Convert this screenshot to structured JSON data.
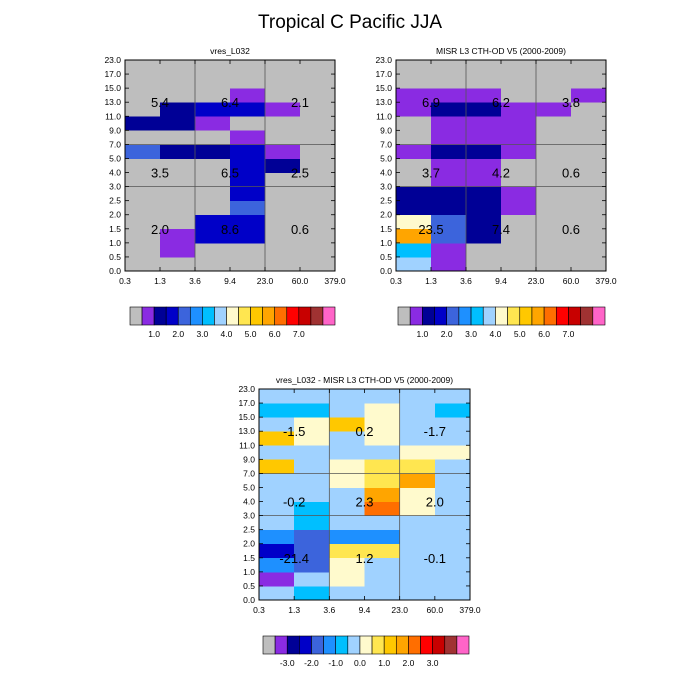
{
  "title": "Tropical C Pacific JJA",
  "colors": {
    "absolute_palette": [
      "#bebebe",
      "#8a2be2",
      "#000096",
      "#0000c8",
      "#3c64dc",
      "#1e90ff",
      "#00bfff",
      "#a0d2ff",
      "#fffacd",
      "#ffe650",
      "#ffc800",
      "#ffa500",
      "#ff6e00",
      "#ff0000",
      "#c80000",
      "#a03232",
      "#ff64c8"
    ],
    "difference_palette": [
      "#bebebe",
      "#8a2be2",
      "#000096",
      "#0000c8",
      "#3c64dc",
      "#1e90ff",
      "#00bfff",
      "#a0d2ff",
      "#fffacd",
      "#ffe650",
      "#ffc800",
      "#ffa500",
      "#ff6e00",
      "#ff0000",
      "#c80000",
      "#a03232",
      "#ff64c8"
    ]
  },
  "chart_data": [
    {
      "type": "heatmap",
      "title": "vres_L032",
      "x_ticks": [
        "0.3",
        "1.3",
        "3.6",
        "9.4",
        "23.0",
        "60.0",
        "379.0"
      ],
      "y_ticks": [
        "0.0",
        "0.5",
        "1.0",
        "1.5",
        "2.0",
        "2.5",
        "3.0",
        "4.0",
        "5.0",
        "7.0",
        "9.0",
        "11.0",
        "13.0",
        "15.0",
        "17.0",
        "23.0"
      ],
      "cells": [
        [
          0,
          0,
          0,
          0,
          0,
          0
        ],
        [
          0,
          1,
          0,
          0,
          0,
          0
        ],
        [
          0,
          1,
          3,
          3,
          0,
          0
        ],
        [
          0,
          0,
          3,
          3,
          0,
          0
        ],
        [
          0,
          0,
          0,
          4,
          0,
          0
        ],
        [
          0,
          0,
          0,
          3,
          0,
          0
        ],
        [
          0,
          0,
          0,
          3,
          0,
          0
        ],
        [
          0,
          0,
          0,
          3,
          2,
          0
        ],
        [
          4,
          2,
          2,
          3,
          1,
          0
        ],
        [
          0,
          0,
          0,
          1,
          0,
          0
        ],
        [
          2,
          2,
          1,
          0,
          0,
          0
        ],
        [
          0,
          2,
          3,
          3,
          1,
          0
        ],
        [
          0,
          0,
          0,
          1,
          0,
          0
        ],
        [
          0,
          0,
          0,
          0,
          0,
          0
        ],
        [
          0,
          0,
          0,
          0,
          0,
          0
        ]
      ],
      "annotations": [
        {
          "text": "5.4",
          "x_bin": 1,
          "y_bin": 12
        },
        {
          "text": "6.4",
          "x_bin": 3,
          "y_bin": 12
        },
        {
          "text": "2.1",
          "x_bin": 5,
          "y_bin": 12
        },
        {
          "text": "3.5",
          "x_bin": 1,
          "y_bin": 7
        },
        {
          "text": "6.5",
          "x_bin": 3,
          "y_bin": 7
        },
        {
          "text": "2.5",
          "x_bin": 5,
          "y_bin": 7
        },
        {
          "text": "2.0",
          "x_bin": 1,
          "y_bin": 3
        },
        {
          "text": "8.6",
          "x_bin": 3,
          "y_bin": 3
        },
        {
          "text": "0.6",
          "x_bin": 5,
          "y_bin": 3
        }
      ],
      "colorbar_labels": [
        "1.0",
        "2.0",
        "3.0",
        "4.0",
        "5.0",
        "6.0",
        "7.0"
      ]
    },
    {
      "type": "heatmap",
      "title": "MISR L3 CTH-OD V5 (2000-2009)",
      "x_ticks": [
        "0.3",
        "1.3",
        "3.6",
        "9.4",
        "23.0",
        "60.0",
        "379.0"
      ],
      "y_ticks": [
        "0.0",
        "0.5",
        "1.0",
        "1.5",
        "2.0",
        "2.5",
        "3.0",
        "4.0",
        "5.0",
        "7.0",
        "9.0",
        "11.0",
        "13.0",
        "15.0",
        "17.0",
        "23.0"
      ],
      "cells": [
        [
          7,
          1,
          0,
          0,
          0,
          0
        ],
        [
          6,
          1,
          0,
          0,
          0,
          0
        ],
        [
          11,
          4,
          2,
          0,
          0,
          0
        ],
        [
          8,
          4,
          2,
          0,
          0,
          0
        ],
        [
          2,
          2,
          2,
          1,
          0,
          0
        ],
        [
          2,
          2,
          2,
          1,
          0,
          0
        ],
        [
          0,
          1,
          1,
          0,
          0,
          0
        ],
        [
          0,
          1,
          1,
          0,
          0,
          0
        ],
        [
          1,
          2,
          2,
          1,
          0,
          0
        ],
        [
          0,
          1,
          1,
          1,
          0,
          0
        ],
        [
          0,
          1,
          1,
          1,
          0,
          0
        ],
        [
          1,
          2,
          2,
          1,
          1,
          0
        ],
        [
          1,
          1,
          1,
          0,
          0,
          1
        ],
        [
          0,
          0,
          0,
          0,
          0,
          0
        ],
        [
          0,
          0,
          0,
          0,
          0,
          0
        ]
      ],
      "annotations": [
        {
          "text": "6.9",
          "x_bin": 1,
          "y_bin": 12
        },
        {
          "text": "6.2",
          "x_bin": 3,
          "y_bin": 12
        },
        {
          "text": "3.8",
          "x_bin": 5,
          "y_bin": 12
        },
        {
          "text": "3.7",
          "x_bin": 1,
          "y_bin": 7
        },
        {
          "text": "4.2",
          "x_bin": 3,
          "y_bin": 7
        },
        {
          "text": "0.6",
          "x_bin": 5,
          "y_bin": 7
        },
        {
          "text": "23.5",
          "x_bin": 1,
          "y_bin": 3
        },
        {
          "text": "7.4",
          "x_bin": 3,
          "y_bin": 3
        },
        {
          "text": "0.6",
          "x_bin": 5,
          "y_bin": 3
        }
      ],
      "colorbar_labels": [
        "1.0",
        "2.0",
        "3.0",
        "4.0",
        "5.0",
        "6.0",
        "7.0"
      ]
    },
    {
      "type": "heatmap",
      "title": "vres_L032 - MISR L3 CTH-OD V5 (2000-2009)",
      "x_ticks": [
        "0.3",
        "1.3",
        "3.6",
        "9.4",
        "23.0",
        "60.0",
        "379.0"
      ],
      "y_ticks": [
        "0.0",
        "0.5",
        "1.0",
        "1.5",
        "2.0",
        "2.5",
        "3.0",
        "4.0",
        "5.0",
        "7.0",
        "9.0",
        "11.0",
        "13.0",
        "15.0",
        "17.0",
        "23.0"
      ],
      "cells": [
        [
          7,
          6,
          7,
          7,
          7,
          7
        ],
        [
          1,
          7,
          8,
          7,
          7,
          7
        ],
        [
          5,
          4,
          8,
          7,
          7,
          7
        ],
        [
          3,
          4,
          9,
          9,
          7,
          7
        ],
        [
          5,
          4,
          5,
          5,
          7,
          7
        ],
        [
          7,
          6,
          7,
          7,
          7,
          7
        ],
        [
          7,
          6,
          7,
          12,
          8,
          7
        ],
        [
          7,
          7,
          7,
          11,
          8,
          7
        ],
        [
          7,
          7,
          8,
          9,
          11,
          7
        ],
        [
          10,
          7,
          8,
          9,
          9,
          7
        ],
        [
          7,
          7,
          7,
          7,
          8,
          8
        ],
        [
          10,
          8,
          7,
          8,
          7,
          7
        ],
        [
          7,
          8,
          10,
          8,
          7,
          7
        ],
        [
          6,
          6,
          7,
          8,
          7,
          6
        ],
        [
          7,
          7,
          7,
          7,
          7,
          7
        ]
      ],
      "annotations": [
        {
          "text": "-1.5",
          "x_bin": 1,
          "y_bin": 12
        },
        {
          "text": "0.2",
          "x_bin": 3,
          "y_bin": 12
        },
        {
          "text": "-1.7",
          "x_bin": 5,
          "y_bin": 12
        },
        {
          "text": "-0.2",
          "x_bin": 1,
          "y_bin": 7
        },
        {
          "text": "2.3",
          "x_bin": 3,
          "y_bin": 7
        },
        {
          "text": "2.0",
          "x_bin": 5,
          "y_bin": 7
        },
        {
          "text": "-21.4",
          "x_bin": 1,
          "y_bin": 3
        },
        {
          "text": "1.2",
          "x_bin": 3,
          "y_bin": 3
        },
        {
          "text": "-0.1",
          "x_bin": 5,
          "y_bin": 3
        }
      ],
      "colorbar_labels": [
        "-3.0",
        "-2.0",
        "-1.0",
        "0.0",
        "1.0",
        "2.0",
        "3.0"
      ]
    }
  ]
}
